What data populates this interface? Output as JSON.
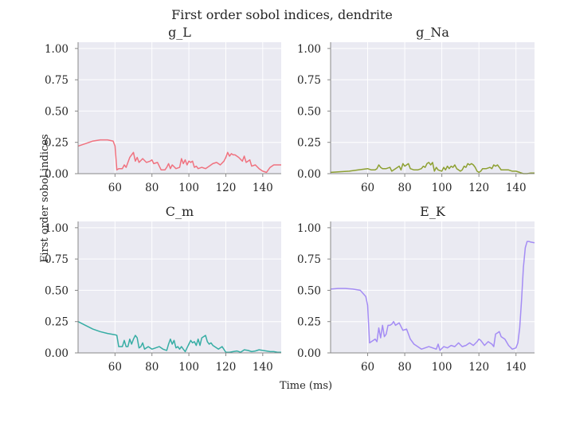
{
  "chart_data": {
    "type": "line",
    "title": "First order sobol indices, dendrite",
    "xlabel": "Time (ms)",
    "ylabel": "First order sobol indices",
    "xlim": [
      40,
      150
    ],
    "ylim": [
      0,
      1.05
    ],
    "xticks": [
      60,
      80,
      100,
      120,
      140
    ],
    "yticks": [
      0.0,
      0.25,
      0.5,
      0.75,
      1.0
    ],
    "xtick_labels": [
      "60",
      "80",
      "100",
      "120",
      "140"
    ],
    "ytick_labels": [
      "0.00",
      "0.25",
      "0.50",
      "0.75",
      "1.00"
    ],
    "grid": true,
    "panels": [
      {
        "title": "g_L",
        "color": "#f0727f",
        "x": [
          40,
          44,
          48,
          52,
          56,
          59,
          60,
          61,
          62,
          64,
          65,
          66,
          67,
          68,
          69,
          70,
          71,
          72,
          73,
          75,
          77,
          79,
          80,
          81,
          83,
          85,
          87,
          88,
          89,
          90,
          91,
          93,
          95,
          96,
          97,
          98,
          99,
          100,
          101,
          102,
          103,
          104,
          105,
          107,
          109,
          111,
          113,
          115,
          117,
          119,
          120,
          121,
          122,
          123,
          124,
          125,
          127,
          129,
          130,
          131,
          133,
          134,
          136,
          138,
          140,
          142,
          144,
          146,
          148,
          150
        ],
        "y": [
          0.22,
          0.24,
          0.26,
          0.27,
          0.27,
          0.26,
          0.22,
          0.03,
          0.04,
          0.04,
          0.07,
          0.05,
          0.09,
          0.13,
          0.15,
          0.17,
          0.1,
          0.13,
          0.09,
          0.12,
          0.09,
          0.1,
          0.11,
          0.08,
          0.09,
          0.03,
          0.03,
          0.05,
          0.08,
          0.04,
          0.07,
          0.04,
          0.05,
          0.12,
          0.08,
          0.11,
          0.07,
          0.1,
          0.09,
          0.1,
          0.05,
          0.06,
          0.04,
          0.05,
          0.04,
          0.06,
          0.08,
          0.09,
          0.07,
          0.1,
          0.13,
          0.17,
          0.14,
          0.16,
          0.15,
          0.15,
          0.13,
          0.1,
          0.14,
          0.09,
          0.11,
          0.06,
          0.07,
          0.04,
          0.02,
          0.01,
          0.05,
          0.07,
          0.07,
          0.07
        ]
      },
      {
        "title": "g_Na",
        "color": "#8da031",
        "x": [
          40,
          45,
          50,
          55,
          60,
          62,
          64,
          65,
          66,
          67,
          68,
          70,
          72,
          73,
          75,
          77,
          78,
          79,
          80,
          81,
          82,
          83,
          85,
          87,
          89,
          90,
          91,
          92,
          93,
          94,
          95,
          96,
          97,
          98,
          100,
          101,
          102,
          103,
          104,
          105,
          106,
          107,
          108,
          109,
          110,
          111,
          112,
          113,
          114,
          115,
          116,
          117,
          118,
          119,
          120,
          121,
          122,
          124,
          126,
          127,
          128,
          129,
          130,
          131,
          132,
          134,
          136,
          138,
          140,
          142,
          144,
          146,
          148,
          150
        ],
        "y": [
          0.01,
          0.015,
          0.02,
          0.03,
          0.04,
          0.03,
          0.03,
          0.04,
          0.07,
          0.05,
          0.04,
          0.04,
          0.05,
          0.02,
          0.04,
          0.06,
          0.03,
          0.08,
          0.06,
          0.07,
          0.08,
          0.04,
          0.03,
          0.03,
          0.04,
          0.06,
          0.05,
          0.08,
          0.09,
          0.07,
          0.09,
          0.02,
          0.05,
          0.03,
          0.02,
          0.05,
          0.03,
          0.06,
          0.04,
          0.06,
          0.05,
          0.07,
          0.04,
          0.03,
          0.02,
          0.03,
          0.06,
          0.05,
          0.08,
          0.07,
          0.08,
          0.07,
          0.05,
          0.02,
          0.01,
          0.02,
          0.04,
          0.04,
          0.05,
          0.04,
          0.07,
          0.06,
          0.07,
          0.05,
          0.03,
          0.03,
          0.03,
          0.02,
          0.02,
          0.01,
          0.0,
          0.0,
          0.005,
          0.005
        ]
      },
      {
        "title": "C_m",
        "color": "#36ada4",
        "x": [
          40,
          44,
          48,
          52,
          56,
          60,
          61,
          62,
          64,
          65,
          66,
          67,
          68,
          69,
          70,
          71,
          72,
          73,
          74,
          75,
          76,
          78,
          80,
          82,
          84,
          86,
          88,
          89,
          90,
          91,
          92,
          93,
          94,
          95,
          96,
          97,
          98,
          99,
          100,
          101,
          102,
          103,
          104,
          105,
          106,
          107,
          108,
          109,
          110,
          111,
          112,
          113,
          114,
          116,
          118,
          120,
          122,
          124,
          126,
          128,
          130,
          132,
          134,
          136,
          138,
          140,
          142,
          144,
          146,
          148,
          150
        ],
        "y": [
          0.25,
          0.22,
          0.19,
          0.17,
          0.155,
          0.145,
          0.14,
          0.05,
          0.05,
          0.1,
          0.05,
          0.05,
          0.11,
          0.07,
          0.11,
          0.14,
          0.12,
          0.04,
          0.05,
          0.08,
          0.03,
          0.05,
          0.03,
          0.04,
          0.05,
          0.03,
          0.02,
          0.07,
          0.11,
          0.07,
          0.1,
          0.04,
          0.05,
          0.03,
          0.05,
          0.03,
          0.01,
          0.04,
          0.07,
          0.1,
          0.08,
          0.09,
          0.06,
          0.11,
          0.06,
          0.12,
          0.13,
          0.14,
          0.09,
          0.07,
          0.08,
          0.06,
          0.05,
          0.03,
          0.05,
          0.005,
          0.005,
          0.01,
          0.015,
          0.005,
          0.025,
          0.02,
          0.01,
          0.015,
          0.025,
          0.02,
          0.015,
          0.01,
          0.01,
          0.005,
          0.005
        ]
      },
      {
        "title": "E_K",
        "color": "#a48cf4",
        "x": [
          40,
          44,
          48,
          52,
          56,
          59,
          60,
          61,
          62,
          64,
          65,
          66,
          67,
          68,
          69,
          70,
          71,
          72,
          73,
          74,
          75,
          77,
          79,
          81,
          83,
          85,
          87,
          89,
          91,
          93,
          95,
          97,
          98,
          99,
          101,
          103,
          105,
          107,
          109,
          111,
          113,
          115,
          117,
          119,
          120,
          121,
          123,
          125,
          127,
          128,
          129,
          130,
          131,
          132,
          134,
          136,
          138,
          140,
          141,
          142,
          143,
          144,
          145,
          146,
          147,
          148,
          150
        ],
        "y": [
          0.51,
          0.515,
          0.515,
          0.51,
          0.5,
          0.45,
          0.38,
          0.08,
          0.09,
          0.11,
          0.09,
          0.2,
          0.12,
          0.22,
          0.13,
          0.15,
          0.22,
          0.22,
          0.23,
          0.25,
          0.22,
          0.24,
          0.18,
          0.19,
          0.11,
          0.07,
          0.05,
          0.03,
          0.04,
          0.05,
          0.04,
          0.03,
          0.07,
          0.02,
          0.05,
          0.04,
          0.06,
          0.05,
          0.08,
          0.05,
          0.06,
          0.08,
          0.06,
          0.09,
          0.11,
          0.1,
          0.06,
          0.09,
          0.07,
          0.05,
          0.15,
          0.16,
          0.17,
          0.13,
          0.11,
          0.06,
          0.03,
          0.04,
          0.08,
          0.2,
          0.42,
          0.68,
          0.84,
          0.89,
          0.89,
          0.885,
          0.88
        ]
      }
    ]
  }
}
